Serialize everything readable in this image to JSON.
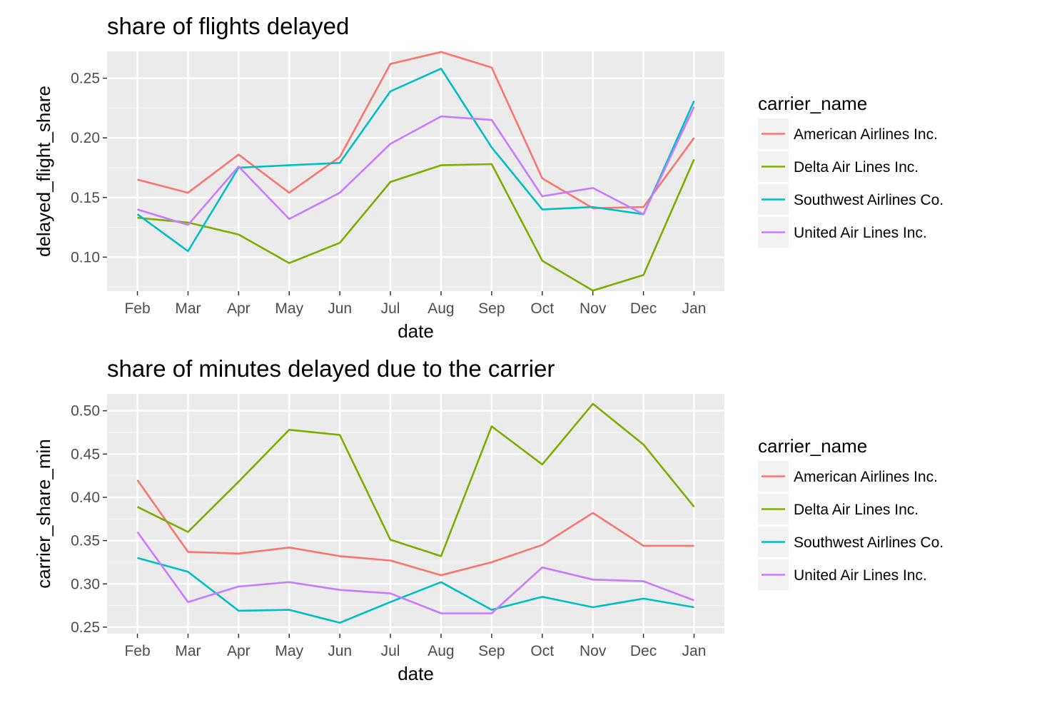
{
  "chart_data": [
    {
      "type": "line",
      "title": "share of flights delayed",
      "xlabel": "date",
      "ylabel": "delayed_flight_share",
      "categories": [
        "Feb",
        "Mar",
        "Apr",
        "May",
        "Jun",
        "Jul",
        "Aug",
        "Sep",
        "Oct",
        "Nov",
        "Dec",
        "Jan"
      ],
      "ylim": [
        0.0715,
        0.2725
      ],
      "yticks": [
        0.1,
        0.15,
        0.2,
        0.25
      ],
      "ytick_labels": [
        "0.10",
        "0.15",
        "0.20",
        "0.25"
      ],
      "grid": true,
      "legend_title": "carrier_name",
      "legend_position": "right",
      "series": [
        {
          "name": "American Airlines Inc.",
          "color": "#f8766d",
          "values": [
            0.165,
            0.154,
            0.186,
            0.154,
            0.184,
            0.262,
            0.272,
            0.259,
            0.166,
            0.141,
            0.142,
            0.2
          ]
        },
        {
          "name": "Delta Air Lines Inc.",
          "color": "#7cae00",
          "values": [
            0.133,
            0.129,
            0.119,
            0.095,
            0.112,
            0.163,
            0.177,
            0.178,
            0.097,
            0.072,
            0.085,
            0.182
          ]
        },
        {
          "name": "Southwest Airlines Co.",
          "color": "#00bfc4",
          "values": [
            0.136,
            0.105,
            0.175,
            0.177,
            0.179,
            0.239,
            0.258,
            0.192,
            0.14,
            0.142,
            0.136,
            0.231
          ]
        },
        {
          "name": "United Air Lines Inc.",
          "color": "#c77cff",
          "values": [
            0.14,
            0.127,
            0.176,
            0.132,
            0.154,
            0.195,
            0.218,
            0.215,
            0.151,
            0.158,
            0.136,
            0.226
          ]
        }
      ]
    },
    {
      "type": "line",
      "title": "share of minutes delayed due to the carrier",
      "xlabel": "date",
      "ylabel": "carrier_share_min",
      "categories": [
        "Feb",
        "Mar",
        "Apr",
        "May",
        "Jun",
        "Jul",
        "Aug",
        "Sep",
        "Oct",
        "Nov",
        "Dec",
        "Jan"
      ],
      "ylim": [
        0.2425,
        0.5195
      ],
      "yticks": [
        0.25,
        0.3,
        0.35,
        0.4,
        0.45,
        0.5
      ],
      "ytick_labels": [
        "0.25",
        "0.30",
        "0.35",
        "0.40",
        "0.45",
        "0.50"
      ],
      "grid": true,
      "legend_title": "carrier_name",
      "legend_position": "right",
      "series": [
        {
          "name": "American Airlines Inc.",
          "color": "#f8766d",
          "values": [
            0.42,
            0.337,
            0.335,
            0.342,
            0.332,
            0.327,
            0.31,
            0.325,
            0.345,
            0.382,
            0.344,
            0.344
          ]
        },
        {
          "name": "Delta Air Lines Inc.",
          "color": "#7cae00",
          "values": [
            0.389,
            0.36,
            0.418,
            0.478,
            0.472,
            0.351,
            0.332,
            0.482,
            0.438,
            0.508,
            0.461,
            0.389
          ]
        },
        {
          "name": "Southwest Airlines Co.",
          "color": "#00bfc4",
          "values": [
            0.33,
            0.314,
            0.269,
            0.27,
            0.255,
            0.279,
            0.302,
            0.27,
            0.285,
            0.273,
            0.283,
            0.273
          ]
        },
        {
          "name": "United Air Lines Inc.",
          "color": "#c77cff",
          "values": [
            0.36,
            0.279,
            0.297,
            0.302,
            0.293,
            0.289,
            0.266,
            0.266,
            0.319,
            0.305,
            0.303,
            0.281
          ]
        }
      ]
    }
  ]
}
